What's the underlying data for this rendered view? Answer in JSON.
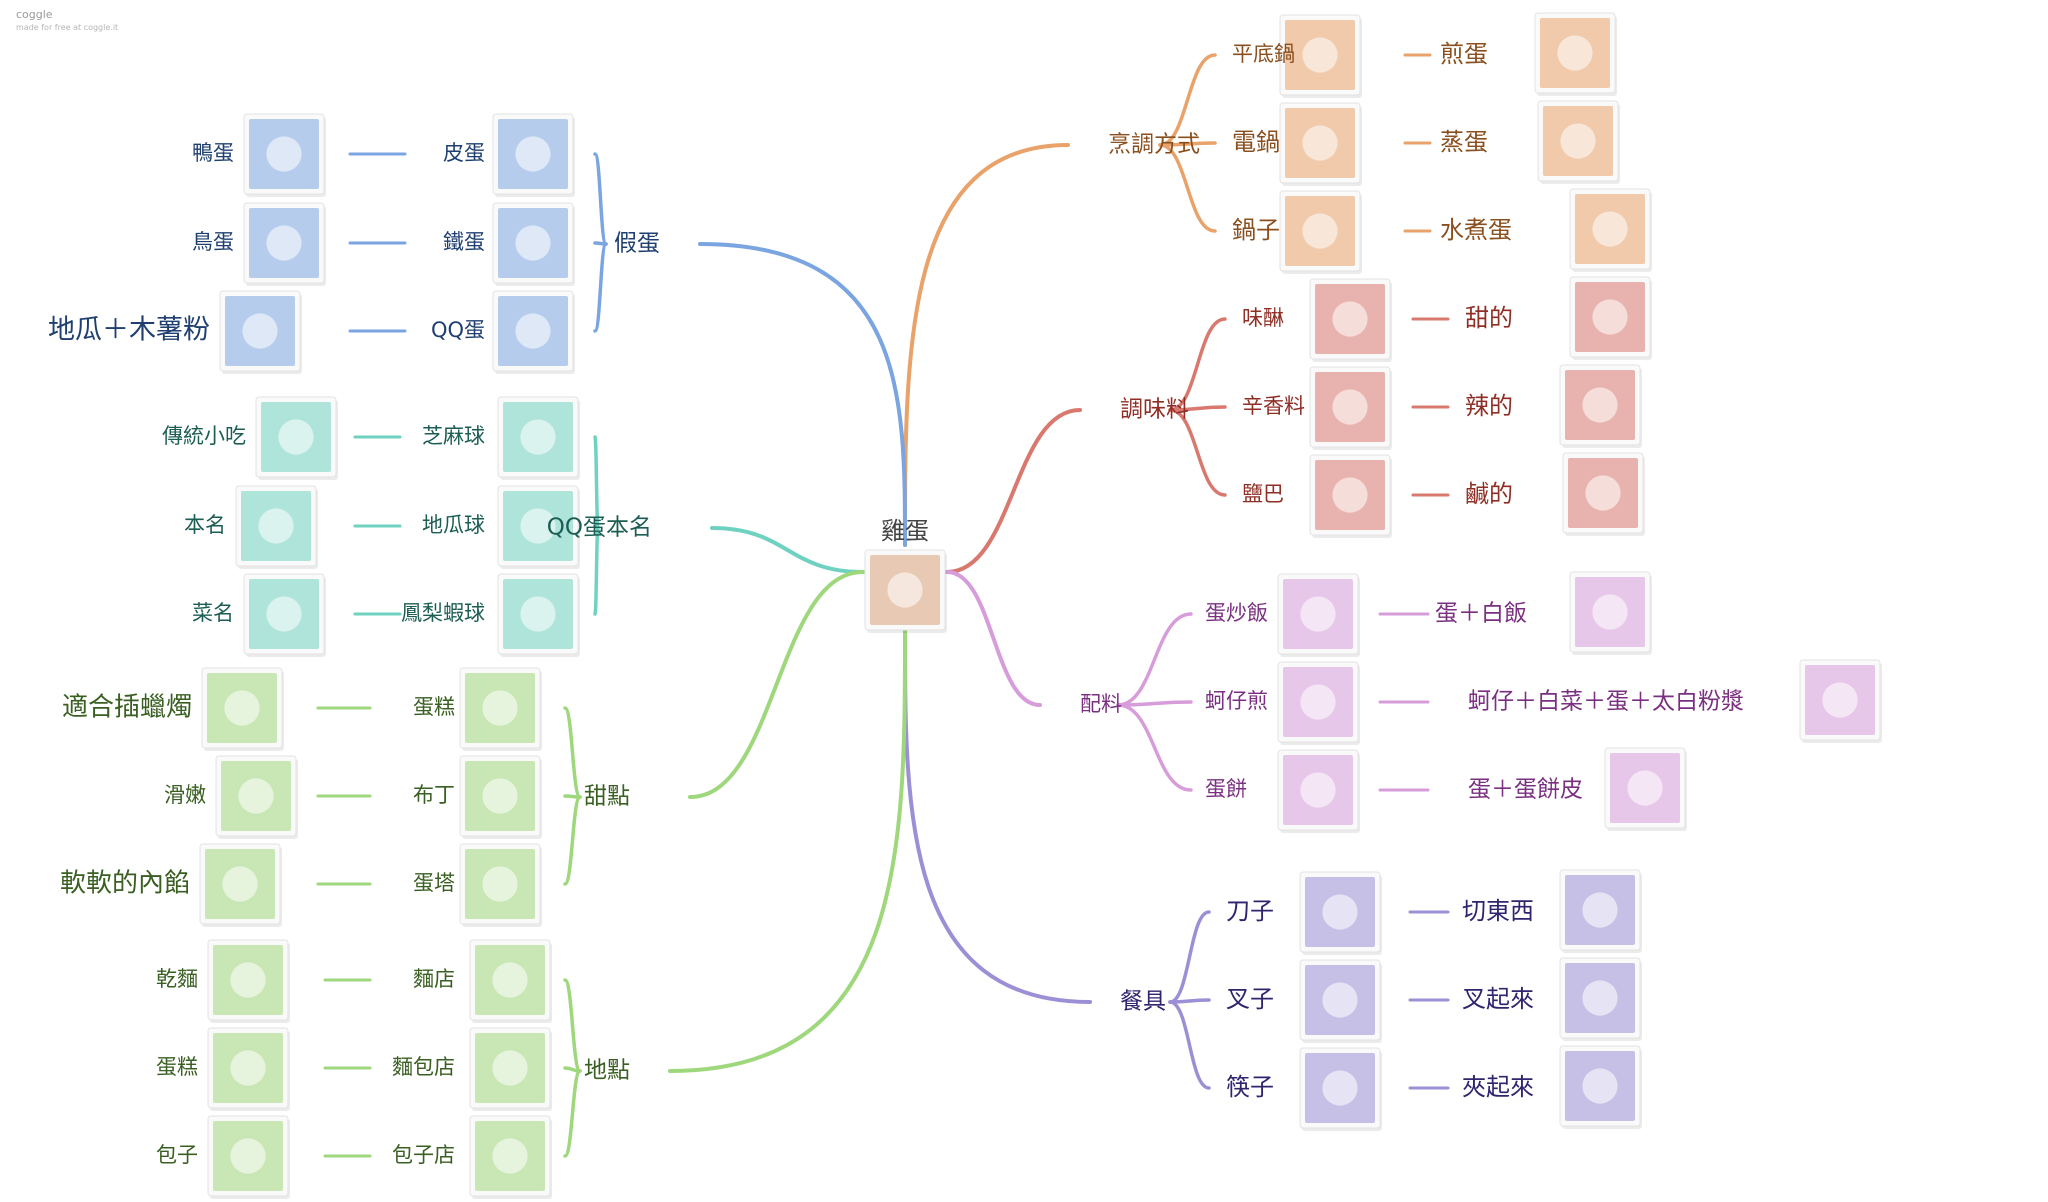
{
  "watermark": {
    "brand": "coggle",
    "tagline": "made for free at coggle.it"
  },
  "center": {
    "label": "雞蛋",
    "image": "basket of eggs"
  },
  "branches": [
    {
      "id": "cooking",
      "label": "烹調方式",
      "color": "#e8a26a",
      "text_color": "#8a4f1e",
      "children": [
        {
          "label": "平底鍋",
          "image": "frying pan",
          "result": "煎蛋",
          "result_image": "fried egg"
        },
        {
          "label": "電鍋",
          "image": "rice cooker",
          "result": "蒸蛋",
          "result_image": "steamed egg"
        },
        {
          "label": "鍋子",
          "image": "pot",
          "result": "水煮蛋",
          "result_image": "boiled eggs"
        }
      ]
    },
    {
      "id": "seasoning",
      "label": "調味料",
      "color": "#d9786f",
      "text_color": "#8f2e25",
      "children": [
        {
          "label": "味醂",
          "image": "mirin bottle",
          "result": "甜的",
          "result_image": "donuts"
        },
        {
          "label": "辛香料",
          "image": "chili powder",
          "result": "辣的",
          "result_image": "chili peppers"
        },
        {
          "label": "鹽巴",
          "image": "salt bag",
          "result": "鹹的",
          "result_image": "pouring salt"
        }
      ]
    },
    {
      "id": "ingredients",
      "label": "配料",
      "color": "#d79ddb",
      "text_color": "#7a2f80",
      "children": [
        {
          "label": "蛋炒飯",
          "image": "fried rice",
          "result": "蛋＋白飯",
          "result_image": "egg and rice"
        },
        {
          "label": "蚵仔煎",
          "image": "oyster omelette",
          "result": "蚵仔＋白菜＋蛋＋太白粉漿",
          "result_image": "oyster ingredients"
        },
        {
          "label": "蛋餅",
          "image": "egg crepe",
          "result": "蛋＋蛋餅皮",
          "result_image": "crepe skin"
        }
      ]
    },
    {
      "id": "utensils",
      "label": "餐具",
      "color": "#9d8fd6",
      "text_color": "#2f246e",
      "children": [
        {
          "label": "刀子",
          "image": "knife",
          "result": "切東西",
          "result_image": "cutting meat"
        },
        {
          "label": "叉子",
          "image": "fork",
          "result": "叉起來",
          "result_image": "spaghetti"
        },
        {
          "label": "筷子",
          "image": "chopsticks",
          "result": "夾起來",
          "result_image": "rice bowl"
        }
      ]
    },
    {
      "id": "fake_egg",
      "label": "假蛋",
      "color": "#7ba5e0",
      "text_color": "#1f3f70",
      "children": [
        {
          "label": "皮蛋",
          "image": "century egg",
          "origin": "鴨蛋",
          "origin_image": "duck eggs"
        },
        {
          "label": "鐵蛋",
          "image": "iron eggs",
          "origin": "鳥蛋",
          "origin_image": "bird eggs"
        },
        {
          "label": "QQ蛋",
          "image": "QQ eggs",
          "origin": "地瓜＋木薯粉",
          "origin_image": "sweet potato and tapioca flour"
        }
      ]
    },
    {
      "id": "qq_name",
      "label": "QQ蛋本名",
      "color": "#6fd1bf",
      "text_color": "#1d5e54",
      "children": [
        {
          "label": "芝麻球",
          "image": "sesame balls",
          "origin": "傳統小吃",
          "origin_image": "snack package"
        },
        {
          "label": "地瓜球",
          "image": "sweet potato balls",
          "origin": "本名",
          "origin_image": "street stall"
        },
        {
          "label": "鳳梨蝦球",
          "image": "pineapple shrimp balls",
          "origin": "菜名",
          "origin_image": "recipe ingredients"
        }
      ]
    },
    {
      "id": "dessert",
      "label": "甜點",
      "color": "#9fd77c",
      "text_color": "#3a5f22",
      "children": [
        {
          "label": "蛋糕",
          "image": "cake",
          "origin": "適合插蠟燭",
          "origin_image": "birthday cake"
        },
        {
          "label": "布丁",
          "image": "pudding",
          "origin": "滑嫩",
          "origin_image": "pudding slice"
        },
        {
          "label": "蛋塔",
          "image": "egg tarts",
          "origin": "軟軟的內餡",
          "origin_image": "egg tart filling"
        }
      ]
    },
    {
      "id": "place",
      "label": "地點",
      "color": "#9fd77c",
      "text_color": "#3a5f22",
      "children": [
        {
          "label": "麵店",
          "image": "noodle shop",
          "origin": "乾麵",
          "origin_image": "dry noodles"
        },
        {
          "label": "麵包店",
          "image": "bakery",
          "origin": "蛋糕",
          "origin_image": "cakes display"
        },
        {
          "label": "包子店",
          "image": "bun shop",
          "origin": "包子",
          "origin_image": "steamed buns"
        }
      ]
    }
  ]
}
